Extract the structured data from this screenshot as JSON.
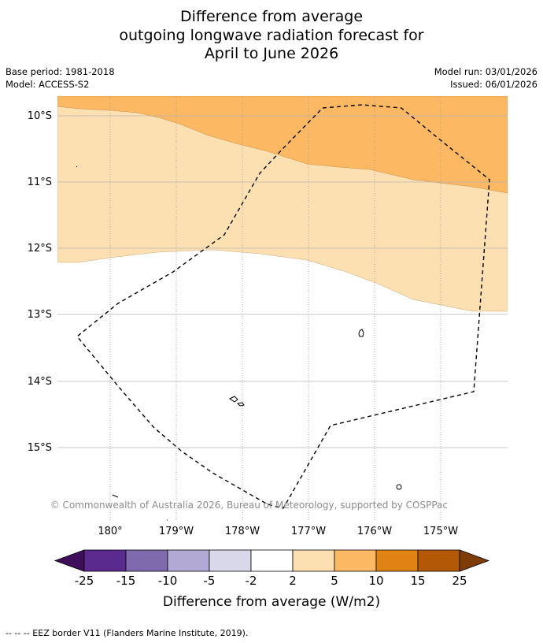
{
  "title": {
    "line1": "Difference from average",
    "line2": "outgoing longwave radiation forecast for",
    "line3": "April to June 2026"
  },
  "meta": {
    "base_period": "Base period: 1981-2018",
    "model": "Model: ACCESS-S2",
    "model_run": "Model run: 03/01/2026",
    "issued": "Issued: 06/01/2026"
  },
  "map": {
    "lat_labels": [
      "10°S",
      "11°S",
      "12°S",
      "13°S",
      "14°S",
      "15°S"
    ],
    "lon_labels": [
      "180°",
      "179°W",
      "178°W",
      "177°W",
      "176°W",
      "175°W"
    ],
    "copyright": "© Commonwealth of Australia 2026, Bureau of Meteorology, supported by COSPPac"
  },
  "colorbar": {
    "ticks": [
      "-25",
      "-15",
      "-10",
      "-5",
      "-2",
      "2",
      "5",
      "10",
      "15",
      "25"
    ],
    "colors": [
      "#3f0d5a",
      "#5a2a8e",
      "#7e6aad",
      "#b2a9d4",
      "#d8d8ea",
      "#ffffff",
      "#fde0b2",
      "#fdb864",
      "#e08214",
      "#b35806",
      "#7f3b08"
    ],
    "label": "Difference from average (W/m2)"
  },
  "footer": "--  --  -- EEZ border V11 (Flanders Marine Institute, 2019)."
}
